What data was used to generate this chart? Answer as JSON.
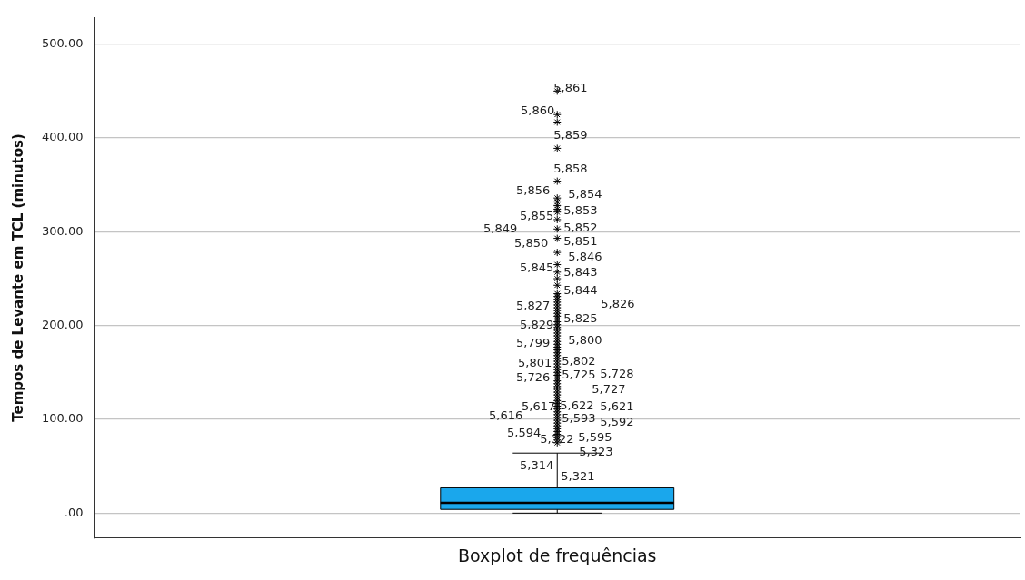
{
  "chart_data": {
    "type": "box",
    "ylabel": "Tempos de Levante em TCL (minutos)",
    "categories": [
      "Boxplot de frequências"
    ],
    "boxes": [
      {
        "low": 0,
        "q1": 4,
        "median": 11,
        "q3": 27,
        "high": 64,
        "outliers": [
          450,
          425,
          417,
          389,
          354,
          336,
          332,
          328,
          324,
          321,
          313,
          303,
          293,
          278,
          265,
          257,
          250,
          243,
          234,
          231,
          228,
          225,
          222,
          219,
          216,
          213,
          210,
          207,
          204,
          201,
          198,
          195,
          192,
          189,
          186,
          183,
          180,
          177,
          174,
          171,
          168,
          165,
          162,
          159,
          156,
          153,
          150,
          147,
          144,
          141,
          138,
          135,
          132,
          129,
          126,
          123,
          120,
          117,
          114,
          111,
          108,
          105,
          102,
          99,
          96,
          93,
          90,
          87,
          84,
          81,
          78,
          75
        ]
      }
    ],
    "color": "#1aa7ec",
    "marker": "star",
    "ylim": [
      -26,
      528
    ],
    "yticks": [
      {
        "value": 0,
        "label": ".00"
      },
      {
        "value": 100,
        "label": "100.00"
      },
      {
        "value": 200,
        "label": "200.00"
      },
      {
        "value": 300,
        "label": "300.00"
      },
      {
        "value": 400,
        "label": "400.00"
      },
      {
        "value": 500,
        "label": "500.00"
      }
    ],
    "grid": "y",
    "annotations": [
      "5,861",
      "5,860",
      "5,859",
      "5,858",
      "5,856",
      "5,854",
      "5,853",
      "5,855",
      "5,852",
      "5,849",
      "5,850",
      "5,851",
      "5,846",
      "5,845",
      "5,843",
      "5,844",
      "5,827",
      "5,826",
      "5,825",
      "5,829",
      "5,799",
      "5,800",
      "5,801",
      "5,802",
      "5,726",
      "5,725",
      "5,728",
      "5,727",
      "5,617",
      "5,622",
      "5,621",
      "5,616",
      "5,593",
      "5,592",
      "5,594",
      "5,322",
      "5,595",
      "5,323",
      "5,314",
      "5,321"
    ]
  }
}
